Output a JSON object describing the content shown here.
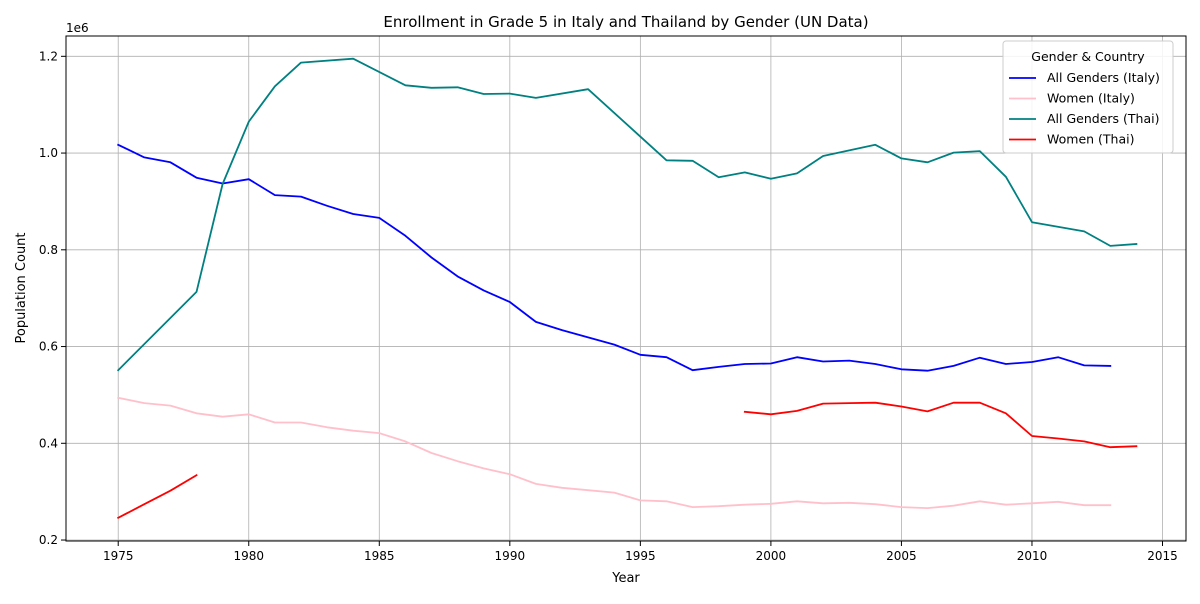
{
  "chart_data": {
    "type": "line",
    "title": "Enrollment in Grade 5 in Italy and Thailand by Gender (UN Data)",
    "xlabel": "Year",
    "ylabel": "Population Count",
    "y_offset_label": "1e6",
    "y_scale_note": "y tick labels shown in units of 1e6",
    "xlim": [
      1973.0,
      2015.9
    ],
    "ylim": [
      198000,
      1242000
    ],
    "x_ticks": [
      1975,
      1980,
      1985,
      1990,
      1995,
      2000,
      2005,
      2010,
      2015
    ],
    "y_ticks": [
      200000,
      400000,
      600000,
      800000,
      1000000,
      1200000
    ],
    "y_tick_labels": [
      "0.2",
      "0.4",
      "0.6",
      "0.8",
      "1.0",
      "1.2"
    ],
    "grid": true,
    "legend_title": "Gender & Country",
    "legend_position": "top-right",
    "series": [
      {
        "name": "All Genders (Italy)",
        "color": "#0000ff",
        "x": [
          1975,
          1976,
          1977,
          1978,
          1979,
          1980,
          1981,
          1982,
          1983,
          1984,
          1985,
          1986,
          1987,
          1988,
          1989,
          1990,
          1991,
          1992,
          1993,
          1994,
          1995,
          1996,
          1997,
          1998,
          1999,
          2000,
          2001,
          2002,
          2003,
          2004,
          2005,
          2006,
          2007,
          2008,
          2009,
          2010,
          2011,
          2012,
          2013
        ],
        "values": [
          1017000,
          991000,
          981000,
          949000,
          937000,
          946000,
          913000,
          910000,
          891000,
          874000,
          866000,
          829000,
          784000,
          745000,
          716000,
          692000,
          651000,
          634000,
          619000,
          604000,
          583000,
          578000,
          551000,
          558000,
          564000,
          565000,
          578000,
          569000,
          571000,
          564000,
          553000,
          550000,
          560000,
          577000,
          564000,
          568000,
          578000,
          561000,
          560000
        ]
      },
      {
        "name": "Women (Italy)",
        "color": "#ffc0cb",
        "x": [
          1975,
          1976,
          1977,
          1978,
          1979,
          1980,
          1981,
          1982,
          1983,
          1984,
          1985,
          1986,
          1987,
          1988,
          1989,
          1990,
          1991,
          1992,
          1993,
          1994,
          1995,
          1996,
          1997,
          1998,
          1999,
          2000,
          2001,
          2002,
          2003,
          2004,
          2005,
          2006,
          2007,
          2008,
          2009,
          2010,
          2011,
          2012,
          2013
        ],
        "values": [
          494000,
          483000,
          478000,
          462000,
          455000,
          460000,
          443000,
          443000,
          433000,
          426000,
          421000,
          404000,
          380000,
          363000,
          348000,
          336000,
          316000,
          308000,
          303000,
          298000,
          282000,
          280000,
          268000,
          270000,
          273000,
          275000,
          280000,
          276000,
          277000,
          274000,
          268000,
          266000,
          271000,
          280000,
          273000,
          276000,
          279000,
          272000,
          272000
        ]
      },
      {
        "name": "All Genders (Thai)",
        "color": "#008080",
        "x": [
          1975,
          1978,
          1979,
          1980,
          1981,
          1982,
          1984,
          1986,
          1987,
          1988,
          1989,
          1990,
          1991,
          1993,
          1996,
          1997,
          1998,
          1999,
          2000,
          2001,
          2002,
          2004,
          2005,
          2006,
          2007,
          2008,
          2009,
          2010,
          2012,
          2013,
          2014
        ],
        "values": [
          551000,
          713000,
          936000,
          1065000,
          1138000,
          1187000,
          1195000,
          1140000,
          1135000,
          1136000,
          1122000,
          1123000,
          1114000,
          1132000,
          985000,
          984000,
          950000,
          960000,
          947000,
          958000,
          994000,
          1017000,
          989000,
          981000,
          1001000,
          1004000,
          951000,
          857000,
          838000,
          808000,
          812000
        ]
      },
      {
        "name": "Women (Thai)",
        "color": "#ff0000",
        "segments": [
          {
            "x": [
              1975,
              1976,
              1977,
              1978
            ],
            "values": [
              246000,
              274000,
              302000,
              334000
            ]
          },
          {
            "x": [
              1999,
              2000,
              2001,
              2002,
              2003,
              2004,
              2005,
              2006,
              2007,
              2008,
              2009,
              2010,
              2011,
              2012,
              2013,
              2014
            ],
            "values": [
              465000,
              460000,
              467000,
              482000,
              483000,
              484000,
              476000,
              466000,
              484000,
              484000,
              462000,
              415000,
              410000,
              404000,
              392000,
              394000
            ]
          }
        ]
      }
    ]
  }
}
